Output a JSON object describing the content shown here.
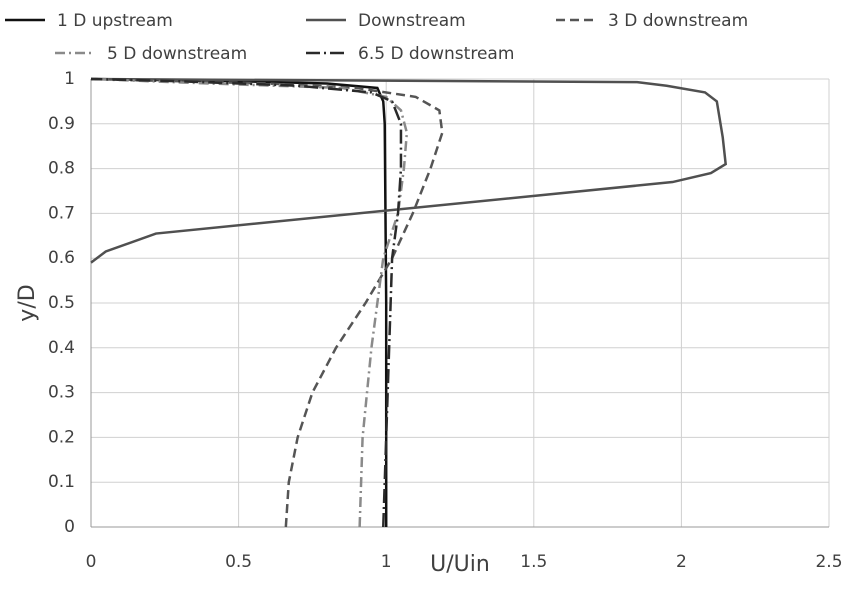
{
  "chart_data": {
    "type": "line",
    "x_label": "U/Uin",
    "y_label": "y/D",
    "xlim": [
      0,
      2.5
    ],
    "ylim": [
      0,
      1
    ],
    "xticks": [
      0,
      0.5,
      1,
      1.5,
      2,
      2.5
    ],
    "yticks": [
      0,
      0.1,
      0.2,
      0.3,
      0.4,
      0.5,
      0.6,
      0.7,
      0.8,
      0.9,
      1
    ],
    "grid": true,
    "legend": "top",
    "series": [
      {
        "name": "1 D upstream",
        "color": "#111111",
        "dash": "none",
        "x": [
          1.0,
          1.0,
          0.995,
          0.99,
          0.97,
          0.8,
          0.5,
          0
        ],
        "values": [
          0,
          0.5,
          0.9,
          0.95,
          0.98,
          0.99,
          0.995,
          1
        ]
      },
      {
        "name": "Downstream",
        "color": "#505050",
        "dash": "none",
        "x": [
          0,
          0.05,
          0.22,
          1.97,
          2.1,
          2.15,
          2.14,
          2.12,
          2.08,
          1.95,
          1.85,
          0
        ],
        "values": [
          0.59,
          0.615,
          0.655,
          0.77,
          0.79,
          0.81,
          0.87,
          0.95,
          0.97,
          0.985,
          0.993,
          1
        ]
      },
      {
        "name": "3 D downstream",
        "color": "#555555",
        "dash": "9 5",
        "x": [
          0.66,
          0.67,
          0.7,
          0.75,
          0.83,
          0.93,
          1.02,
          1.09,
          1.15,
          1.19,
          1.18,
          1.1,
          0.9,
          0.6,
          0
        ],
        "values": [
          0,
          0.1,
          0.2,
          0.3,
          0.4,
          0.5,
          0.6,
          0.7,
          0.8,
          0.88,
          0.93,
          0.96,
          0.98,
          0.99,
          1
        ]
      },
      {
        "name": "5 D downstream",
        "color": "#8a8a8a",
        "dash": "10 4 2 4",
        "x": [
          0.91,
          0.92,
          0.95,
          0.99,
          1.04,
          1.06,
          1.07,
          1.05,
          1.0,
          0.85,
          0.4,
          0
        ],
        "values": [
          0,
          0.2,
          0.4,
          0.6,
          0.7,
          0.8,
          0.88,
          0.93,
          0.96,
          0.98,
          0.99,
          1
        ]
      },
      {
        "name": "6.5 D downstream",
        "color": "#2a2a2a",
        "dash": "14 4 2 4",
        "x": [
          0.99,
          1.0,
          1.01,
          1.02,
          1.04,
          1.05,
          1.05,
          1.02,
          0.95,
          0.7,
          0.3,
          0
        ],
        "values": [
          0,
          0.2,
          0.4,
          0.6,
          0.7,
          0.8,
          0.9,
          0.95,
          0.97,
          0.985,
          0.995,
          1
        ]
      }
    ]
  }
}
